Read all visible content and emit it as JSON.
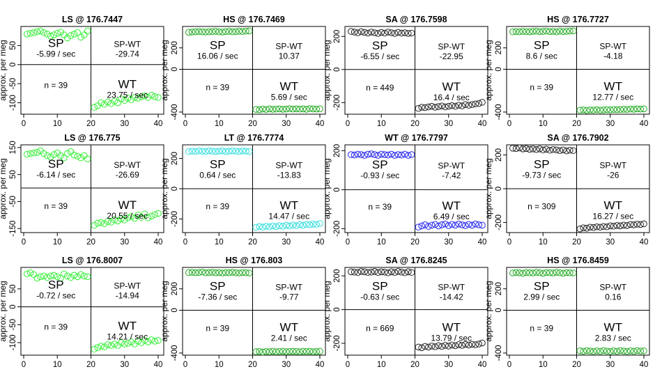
{
  "chart_data": [
    {
      "type": "scatter",
      "title": "LS @ 176.7447",
      "ylabel": "approx. per meg",
      "color": "#33ee33",
      "x_ticks": [
        0,
        10,
        20,
        30,
        40
      ],
      "y_ticks": [
        -100,
        -50,
        0,
        50
      ],
      "ylim": [
        -130,
        100
      ],
      "xlim": [
        0,
        40
      ],
      "sp_rate": "-5.99 / sec",
      "diff": "-29.74",
      "wt_rate": "23.75 / sec",
      "n": "n = 39",
      "sp_values": [
        80,
        82,
        84,
        86,
        88,
        84,
        80,
        75,
        78,
        82,
        85,
        78,
        70,
        76,
        80,
        84,
        72,
        78,
        88
      ],
      "wt_values": [
        -112,
        -108,
        -100,
        -104,
        -98,
        -102,
        -96,
        -100,
        -90,
        -94,
        -88,
        -92,
        -86,
        -88,
        -84,
        -82,
        -86,
        -80,
        -84,
        -86
      ]
    },
    {
      "type": "scatter",
      "title": "HS @ 176.7469",
      "ylabel": "approx. per meg",
      "color": "#22aa22",
      "x_ticks": [
        0,
        10,
        20,
        30,
        40
      ],
      "y_ticks": [
        -400,
        0,
        200
      ],
      "ylim": [
        -420,
        400
      ],
      "xlim": [
        0,
        40
      ],
      "sp_rate": "16.06 / sec",
      "diff": "10.37",
      "wt_rate": "5.69 / sec",
      "n": "n = 39",
      "sp_values": [
        345,
        348,
        350,
        352,
        350,
        348,
        350,
        352,
        355,
        350,
        348,
        352,
        355,
        350,
        352,
        355,
        353,
        356,
        358
      ],
      "wt_values": [
        -375,
        -378,
        -372,
        -376,
        -370,
        -374,
        -372,
        -370,
        -374,
        -372,
        -368,
        -372,
        -370,
        -372,
        -370,
        -374,
        -368,
        -370,
        -372,
        -370
      ]
    },
    {
      "type": "scatter",
      "title": "SA @ 176.7598",
      "ylabel": "approx. per meg",
      "color": "#222222",
      "x_ticks": [
        0,
        10,
        20,
        30,
        40
      ],
      "y_ticks": [
        -200,
        0,
        200
      ],
      "ylim": [
        -270,
        260
      ],
      "xlim": [
        0,
        40
      ],
      "sp_values": [
        230,
        226,
        222,
        228,
        224,
        220,
        226,
        222,
        218,
        224,
        220,
        226,
        222,
        218,
        224,
        220,
        222,
        218,
        220
      ],
      "wt_values": [
        -235,
        -228,
        -230,
        -226,
        -222,
        -228,
        -224,
        -220,
        -226,
        -222,
        -218,
        -222,
        -216,
        -220,
        -212,
        -216,
        -212,
        -208,
        -205,
        -198
      ],
      "sp_rate": "-6.55 / sec",
      "diff": "-22.95",
      "wt_rate": "16.4 / sec",
      "n": "n = 449"
    },
    {
      "type": "scatter",
      "title": "HS @ 176.7727",
      "ylabel": "approx. per meg",
      "color": "#22aa22",
      "x_ticks": [
        0,
        10,
        20,
        30,
        40
      ],
      "y_ticks": [
        -400,
        0,
        200
      ],
      "ylim": [
        -420,
        400
      ],
      "xlim": [
        0,
        40
      ],
      "sp_rate": "8.6 / sec",
      "diff": "-4.18",
      "wt_rate": "12.77 / sec",
      "n": "n = 39",
      "sp_values": [
        350,
        352,
        350,
        354,
        352,
        350,
        354,
        356,
        352,
        354,
        356,
        352,
        354,
        350,
        356,
        352,
        354,
        356,
        358
      ],
      "wt_values": [
        -382,
        -380,
        -384,
        -380,
        -382,
        -378,
        -382,
        -380,
        -378,
        -380,
        -376,
        -378,
        -376,
        -374,
        -376,
        -372,
        -374,
        -370,
        -372,
        -370
      ]
    },
    {
      "type": "scatter",
      "title": "LS @ 176.775",
      "ylabel": "approx. per meg",
      "color": "#33ee33",
      "x_ticks": [
        0,
        10,
        20,
        30,
        40
      ],
      "y_ticks": [
        -150,
        -50,
        50,
        150
      ],
      "ylim": [
        -165,
        160
      ],
      "xlim": [
        0,
        40
      ],
      "sp_rate": "-6.14 / sec",
      "diff": "-26.69",
      "wt_rate": "20.55 / sec",
      "n": "n = 39",
      "sp_values": [
        125,
        128,
        130,
        132,
        138,
        128,
        120,
        115,
        124,
        130,
        120,
        112,
        128,
        135,
        122,
        118,
        112,
        120,
        108
      ],
      "wt_values": [
        -138,
        -130,
        -128,
        -132,
        -124,
        -126,
        -118,
        -122,
        -114,
        -118,
        -110,
        -106,
        -112,
        -100,
        -108,
        -96,
        -110,
        -104,
        -98,
        -94
      ]
    },
    {
      "type": "scatter",
      "title": "LT @ 176.7774",
      "ylabel": "approx. per meg",
      "color": "#33dddd",
      "x_ticks": [
        0,
        10,
        20,
        30,
        40
      ],
      "y_ticks": [
        -200,
        0,
        200
      ],
      "ylim": [
        -290,
        290
      ],
      "xlim": [
        0,
        40
      ],
      "sp_rate": "0.64 / sec",
      "diff": "-13.83",
      "wt_rate": "14.47 / sec",
      "n": "n = 39",
      "sp_values": [
        245,
        248,
        246,
        250,
        248,
        246,
        250,
        248,
        246,
        248,
        250,
        246,
        248,
        250,
        248,
        246,
        250,
        248,
        246
      ],
      "wt_values": [
        -255,
        -250,
        -254,
        -248,
        -252,
        -246,
        -250,
        -244,
        -248,
        -242,
        -246,
        -240,
        -244,
        -238,
        -242,
        -236,
        -238,
        -234,
        -236,
        -230
      ]
    },
    {
      "type": "scatter",
      "title": "WT @ 176.7797",
      "ylabel": "approx. per meg",
      "color": "#2222ee",
      "x_ticks": [
        0,
        10,
        20,
        30,
        40
      ],
      "y_ticks": [
        -200,
        0,
        200
      ],
      "ylim": [
        -220,
        230
      ],
      "xlim": [
        0,
        40
      ],
      "sp_rate": "-0.93 / sec",
      "diff": "-7.42",
      "wt_rate": "6.49 / sec",
      "n": "n = 39",
      "sp_values": [
        180,
        178,
        182,
        180,
        176,
        182,
        184,
        180,
        176,
        182,
        180,
        178,
        182,
        176,
        180,
        178,
        182,
        176,
        180
      ],
      "wt_values": [
        -192,
        -186,
        -180,
        -188,
        -182,
        -178,
        -186,
        -180,
        -176,
        -184,
        -178,
        -182,
        -176,
        -180,
        -184,
        -178,
        -182,
        -176,
        -180,
        -182
      ]
    },
    {
      "type": "scatter",
      "title": "SA @ 176.7902",
      "ylabel": "approx. per meg",
      "color": "#222222",
      "x_ticks": [
        0,
        10,
        20,
        30,
        40
      ],
      "y_ticks": [
        -200,
        0,
        200
      ],
      "ylim": [
        -260,
        260
      ],
      "xlim": [
        0,
        40
      ],
      "sp_rate": "-9.73 / sec",
      "diff": "-26",
      "wt_rate": "16.27 / sec",
      "n": "n = 309",
      "sp_values": [
        240,
        238,
        242,
        236,
        238,
        234,
        236,
        232,
        236,
        230,
        234,
        228,
        232,
        230,
        226,
        230,
        224,
        228,
        226
      ],
      "wt_values": [
        -238,
        -232,
        -234,
        -228,
        -230,
        -226,
        -228,
        -224,
        -226,
        -220,
        -222,
        -218,
        -220,
        -216,
        -218,
        -212,
        -214,
        -210,
        -212,
        -208
      ]
    },
    {
      "type": "scatter",
      "title": "LS @ 176.8007",
      "ylabel": "approx. per meg",
      "color": "#33ee33",
      "x_ticks": [
        0,
        10,
        20,
        30,
        40
      ],
      "y_ticks": [
        -100,
        -50,
        0,
        50
      ],
      "ylim": [
        -135,
        110
      ],
      "xlim": [
        0,
        40
      ],
      "sp_rate": "-0.72 / sec",
      "diff": "-14.94",
      "wt_rate": "14.21 / sec",
      "n": "n = 39",
      "sp_values": [
        92,
        95,
        90,
        80,
        84,
        86,
        82,
        86,
        88,
        84,
        80,
        92,
        86,
        82,
        88,
        84,
        90,
        86,
        84
      ],
      "wt_values": [
        -118,
        -114,
        -110,
        -112,
        -106,
        -108,
        -104,
        -108,
        -100,
        -104,
        -102,
        -98,
        -104,
        -96,
        -100,
        -94,
        -98,
        -92,
        -96,
        -94
      ]
    },
    {
      "type": "scatter",
      "title": "HS @ 176.803",
      "ylabel": "approx. per meg",
      "color": "#22aa22",
      "x_ticks": [
        0,
        10,
        20,
        30,
        40
      ],
      "y_ticks": [
        -400,
        0,
        200
      ],
      "ylim": [
        -420,
        400
      ],
      "xlim": [
        0,
        40
      ],
      "sp_rate": "-7.36 / sec",
      "diff": "-9.77",
      "wt_rate": "2.41 / sec",
      "n": "n = 39",
      "sp_values": [
        352,
        354,
        350,
        352,
        356,
        350,
        352,
        354,
        350,
        352,
        348,
        352,
        350,
        354,
        350,
        348,
        352,
        350,
        348
      ],
      "wt_values": [
        -388,
        -386,
        -390,
        -386,
        -388,
        -384,
        -388,
        -386,
        -384,
        -388,
        -386,
        -384,
        -386,
        -388,
        -384,
        -386,
        -384,
        -388,
        -386,
        -384
      ]
    },
    {
      "type": "scatter",
      "title": "SA @ 176.8245",
      "ylabel": "approx. per meg",
      "color": "#222222",
      "x_ticks": [
        0,
        10,
        20,
        30,
        40
      ],
      "y_ticks": [
        -200,
        0,
        200
      ],
      "ylim": [
        -270,
        250
      ],
      "xlim": [
        0,
        40
      ],
      "sp_rate": "-0.63 / sec",
      "diff": "-14.42",
      "wt_rate": "13.79 / sec",
      "n": "n = 669",
      "sp_values": [
        224,
        222,
        220,
        226,
        224,
        220,
        222,
        226,
        220,
        224,
        222,
        218,
        224,
        220,
        226,
        222,
        218,
        224,
        220
      ],
      "wt_values": [
        -222,
        -226,
        -218,
        -222,
        -216,
        -220,
        -214,
        -218,
        -212,
        -216,
        -210,
        -214,
        -208,
        -212,
        -206,
        -210,
        -206,
        -208,
        -204,
        -198
      ]
    },
    {
      "type": "scatter",
      "title": "HS @ 176.8459",
      "ylabel": "approx. per meg",
      "color": "#22aa22",
      "x_ticks": [
        0,
        10,
        20,
        30,
        40
      ],
      "y_ticks": [
        -400,
        0,
        200
      ],
      "ylim": [
        -420,
        400
      ],
      "xlim": [
        0,
        40
      ],
      "sp_rate": "2.99 / sec",
      "diff": "0.16",
      "wt_rate": "2.83 / sec",
      "n": "n = 39",
      "sp_values": [
        348,
        352,
        350,
        346,
        352,
        350,
        348,
        354,
        350,
        346,
        352,
        350,
        348,
        354,
        350,
        346,
        352,
        350,
        348
      ],
      "wt_values": [
        -380,
        -384,
        -378,
        -382,
        -386,
        -380,
        -384,
        -378,
        -382,
        -386,
        -380,
        -384,
        -378,
        -382,
        -386,
        -380,
        -384,
        -378,
        -382,
        -380
      ]
    }
  ],
  "quadrant_labels": {
    "sp": "SP",
    "wt": "WT",
    "diff": "SP-WT"
  }
}
